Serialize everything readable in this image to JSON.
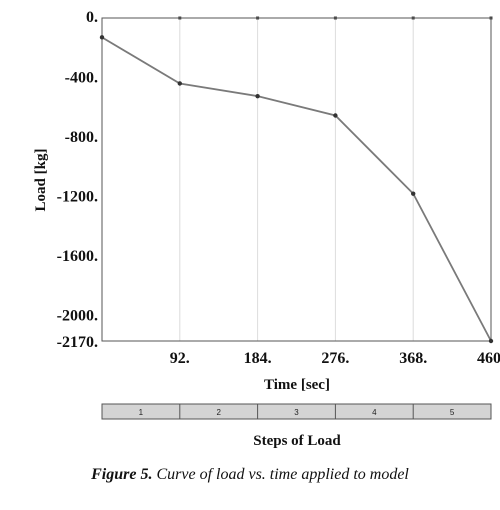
{
  "chart_data": {
    "type": "line",
    "title": "",
    "xlabel": "Time [sec]",
    "ylabel": "Load [kg]",
    "xlim": [
      0,
      460
    ],
    "ylim": [
      -2170,
      0
    ],
    "x_ticks": [
      "92.",
      "184.",
      "276.",
      "368.",
      "460."
    ],
    "y_ticks": [
      "0.",
      "-400.",
      "-800.",
      "-1200.",
      "-1600.",
      "-2000.",
      "-2170."
    ],
    "y_tick_values": [
      0,
      -400,
      -800,
      -1200,
      -1600,
      -2000,
      -2170
    ],
    "x_tick_values": [
      92,
      184,
      276,
      368,
      460
    ],
    "series": [
      {
        "x": [
          0,
          92,
          184,
          276,
          368,
          460
        ],
        "y": [
          -130,
          -440,
          -525,
          -655,
          -1180,
          -2170
        ],
        "color": "#7a7a7a"
      }
    ],
    "grid": true,
    "steps_bar": {
      "title": "Steps of Load",
      "labels": [
        "1",
        "2",
        "3",
        "4",
        "5"
      ],
      "color": "#d4d4d4"
    }
  },
  "caption": {
    "label": "Figure 5.",
    "text": " Curve of load vs. time applied to model"
  }
}
